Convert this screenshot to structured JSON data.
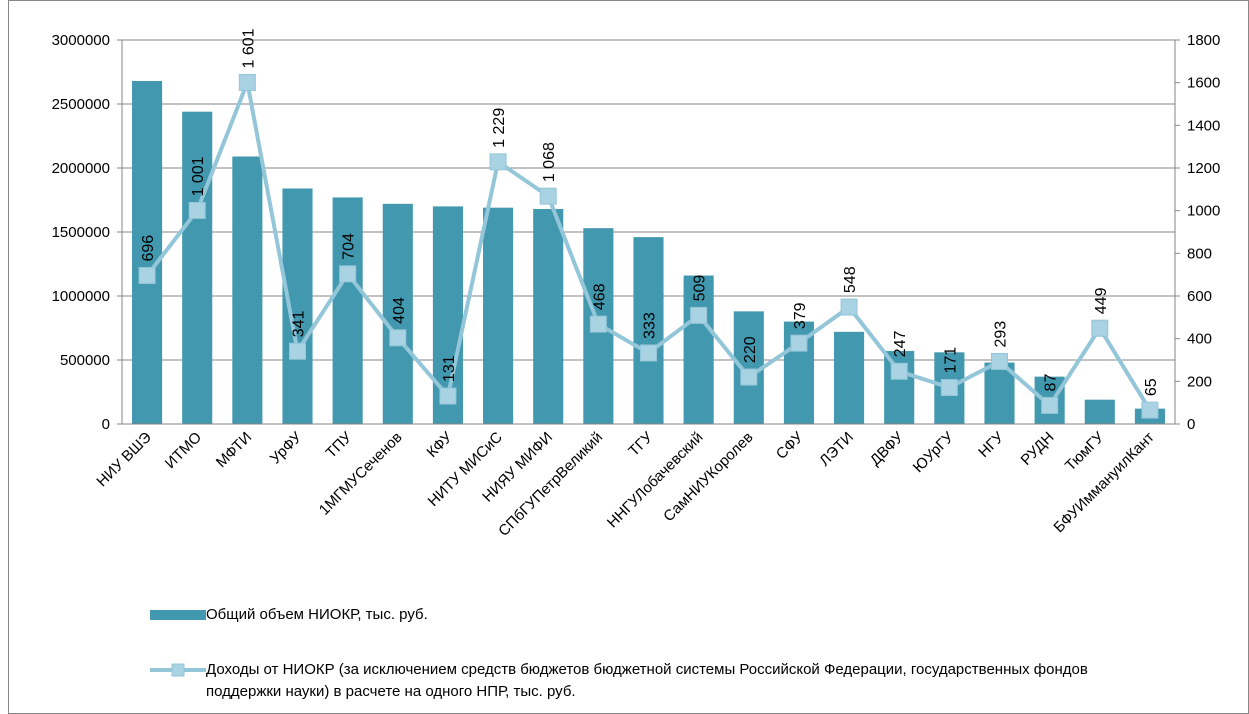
{
  "chart_data": {
    "type": "bar",
    "categories": [
      "НИУ ВШЭ",
      "ИТМО",
      "МФТИ",
      "УрФУ",
      "ТПУ",
      "1МГМУСеченов",
      "КФУ",
      "НИТУ МИСиС",
      "НИЯУ МИФИ",
      "СПбГУПетрВеликий",
      "ТГУ",
      "ННГУЛобачевский",
      "СамНИУКоролев",
      "СФУ",
      "ЛЭТИ",
      "ДВФУ",
      "ЮУрГУ",
      "НГУ",
      "РУДН",
      "ТюмГУ",
      "БФУИммануилКант"
    ],
    "series": [
      {
        "name": "Общий объем НИОКР, тыс. руб.",
        "type": "bar",
        "color": "#4198af",
        "values": [
          2680000,
          2440000,
          2090000,
          1840000,
          1770000,
          1720000,
          1700000,
          1690000,
          1680000,
          1530000,
          1460000,
          1160000,
          880000,
          800000,
          720000,
          570000,
          560000,
          480000,
          370000,
          190000,
          120000
        ]
      },
      {
        "name": "Доходы от НИОКР (за исключением средств бюджетов бюджетной системы Российской Федерации, государственных фондов поддержки науки) в расчете на одного НПР, тыс. руб.",
        "type": "line",
        "axis": "y2",
        "color": "#93c6d8",
        "marker_color": "#a9d2e2",
        "values": [
          696,
          1001,
          1601,
          341,
          704,
          404,
          131,
          1229,
          1068,
          468,
          333,
          509,
          220,
          379,
          548,
          247,
          171,
          293,
          87,
          449,
          65
        ],
        "value_labels": [
          "696",
          "1 001",
          "1 601",
          "341",
          "704",
          "404",
          "131",
          "1 229",
          "1 068",
          "468",
          "333",
          "509",
          "220",
          "379",
          "548",
          "247",
          "171",
          "293",
          "87",
          "449",
          "65"
        ]
      }
    ],
    "ylim": [
      0,
      3000000
    ],
    "yticks": [
      0,
      500000,
      1000000,
      1500000,
      2000000,
      2500000,
      3000000
    ],
    "y2lim": [
      0,
      1800
    ],
    "y2ticks": [
      0,
      200,
      400,
      600,
      800,
      1000,
      1200,
      1400,
      1600,
      1800
    ],
    "grid": true
  }
}
